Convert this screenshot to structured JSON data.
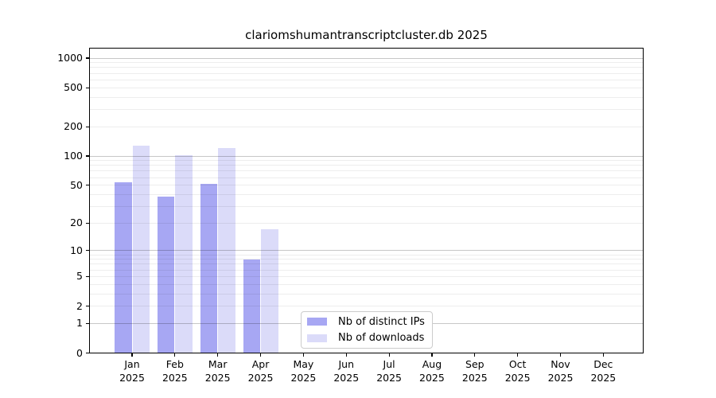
{
  "chart_data": {
    "type": "bar",
    "title": "clariomshumantranscriptcluster.db 2025",
    "categories": [
      "Jan",
      "Feb",
      "Mar",
      "Apr",
      "May",
      "Jun",
      "Jul",
      "Aug",
      "Sep",
      "Oct",
      "Nov",
      "Dec"
    ],
    "year_label": "2025",
    "series": [
      {
        "name": "Nb of distinct IPs",
        "color": "#a7a7f3",
        "values": [
          54,
          38,
          52,
          8,
          0,
          0,
          0,
          0,
          0,
          0,
          0,
          0
        ]
      },
      {
        "name": "Nb of downloads",
        "color": "#dbdbf9",
        "values": [
          128,
          101,
          120,
          17,
          0,
          0,
          0,
          0,
          0,
          0,
          0,
          0
        ]
      }
    ],
    "yscale": "log1p",
    "ylim": [
      0,
      1200
    ],
    "yticks": [
      0,
      1,
      2,
      5,
      10,
      20,
      50,
      100,
      200,
      500,
      1000
    ],
    "major_grid_values": [
      1,
      10,
      100,
      1000
    ],
    "minor_grid_values": [
      2,
      3,
      4,
      5,
      6,
      7,
      8,
      9,
      20,
      30,
      40,
      50,
      60,
      70,
      80,
      90,
      200,
      300,
      400,
      500,
      600,
      700,
      800,
      900
    ],
    "grid": "on",
    "legend_position": "inside lower-center",
    "colors": {
      "major_gridline": "#c6c6c6",
      "minor_gridline": "#ececec",
      "spine": "#000000",
      "background": "#ffffff"
    }
  }
}
